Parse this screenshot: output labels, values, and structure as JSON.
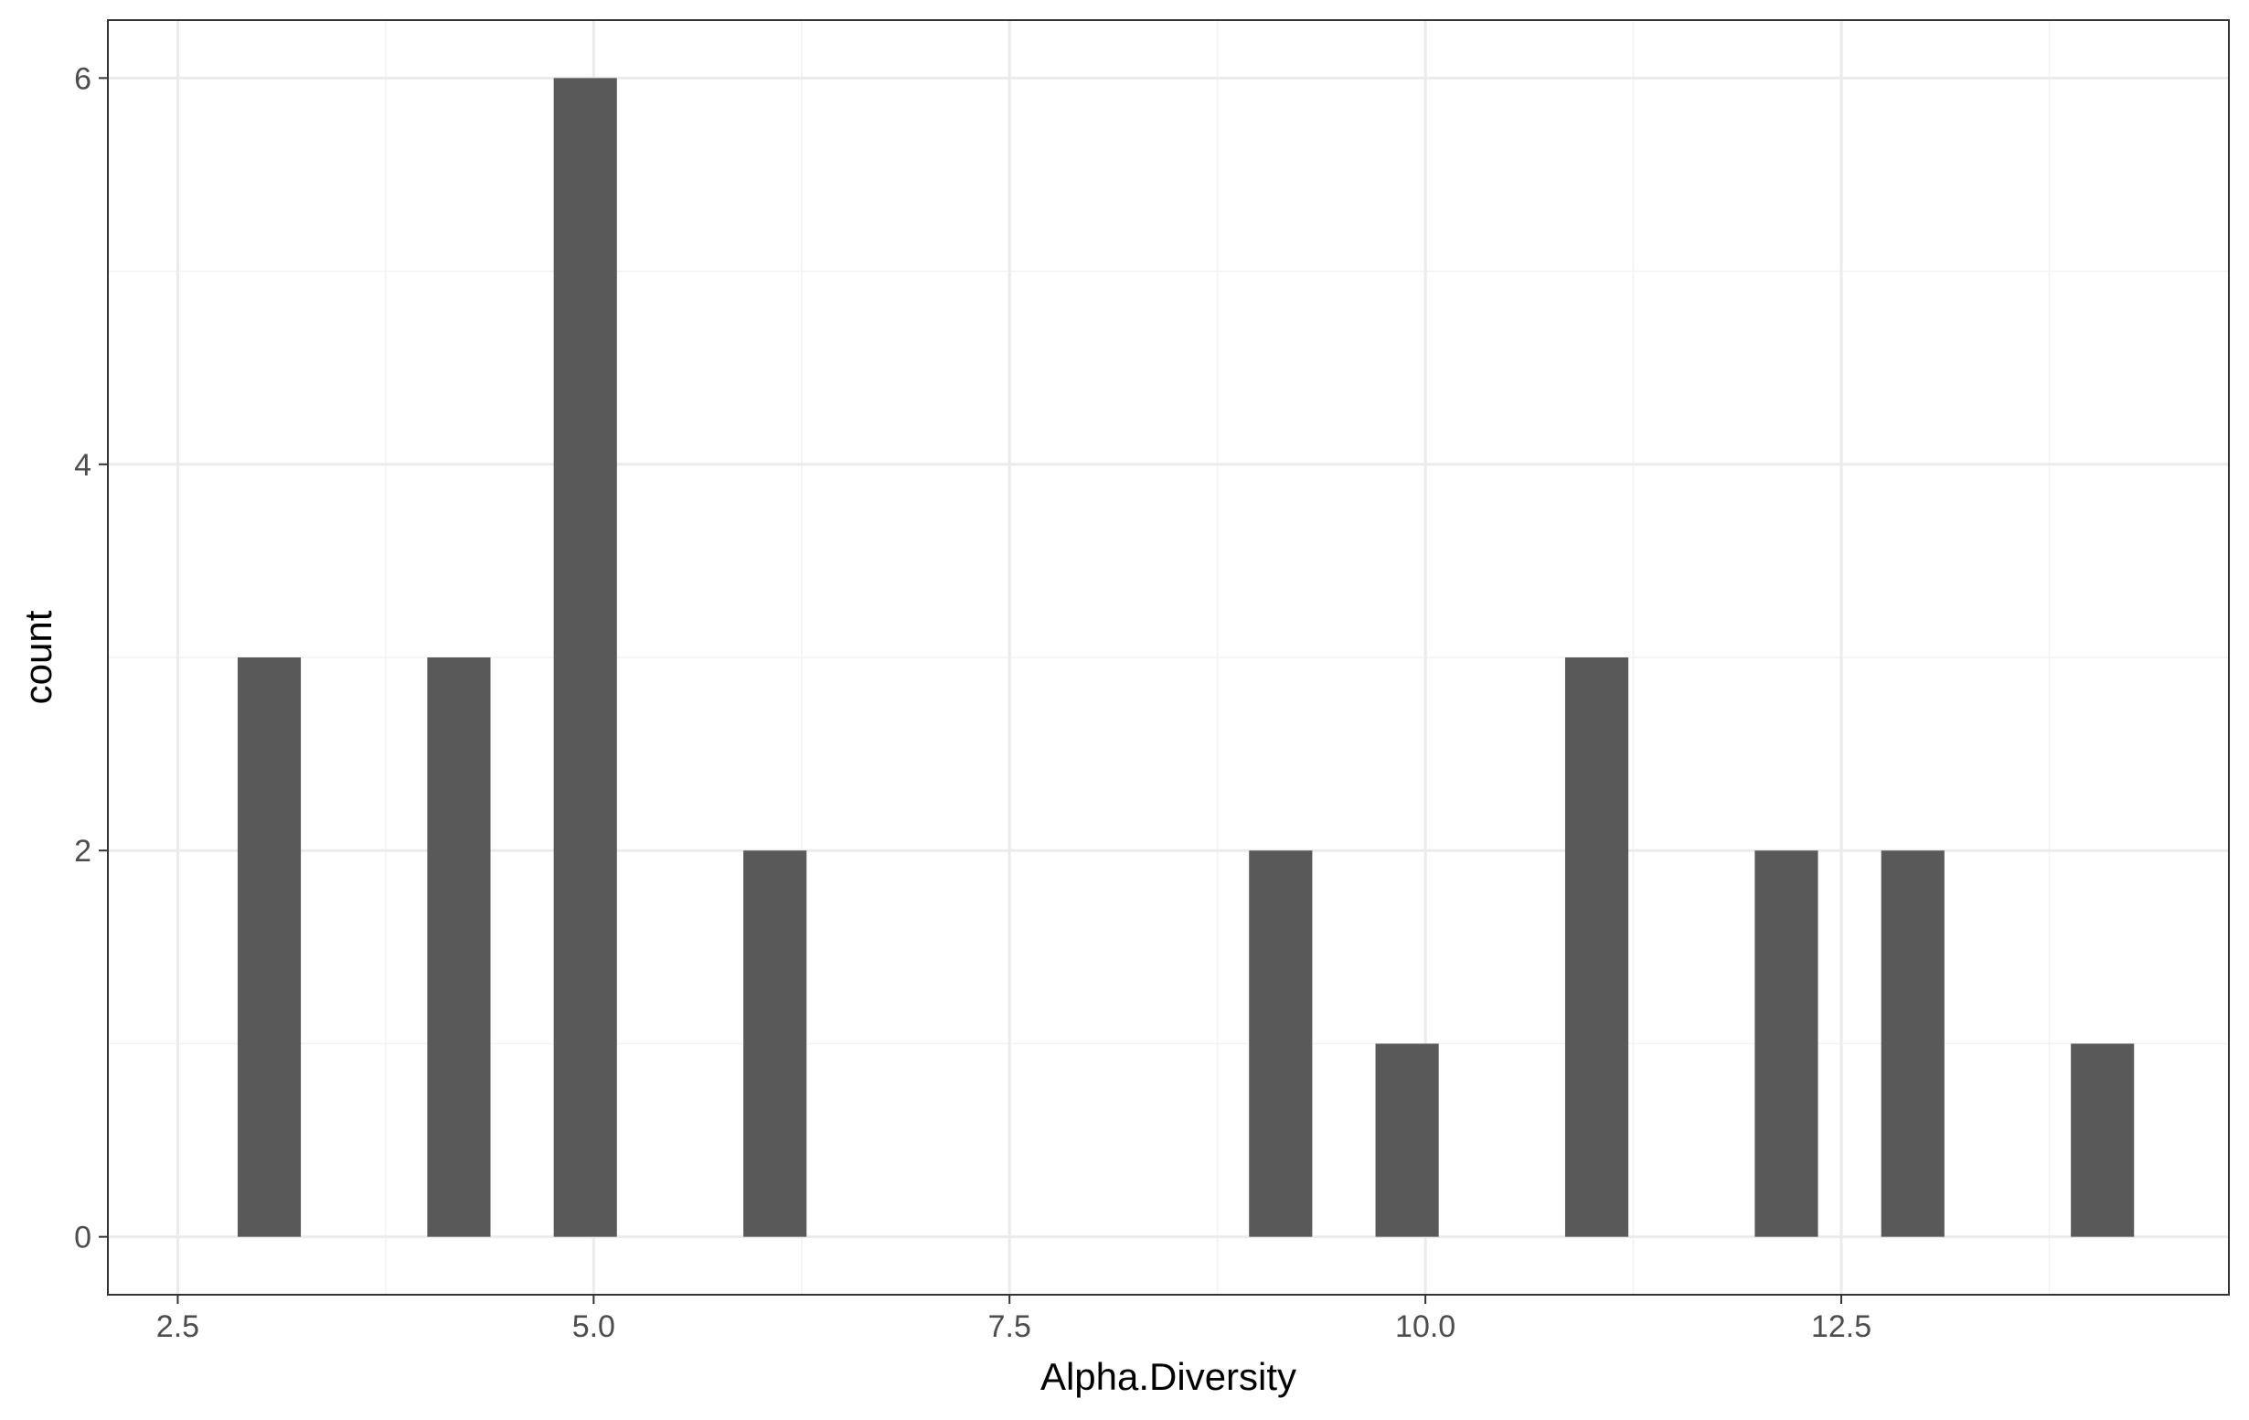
{
  "chart_data": {
    "type": "bar",
    "title": "",
    "xlabel": "Alpha.Diversity",
    "ylabel": "count",
    "grid": true,
    "legend": "none",
    "xlim": [
      2.08,
      14.83
    ],
    "ylim": [
      -0.3,
      6.3
    ],
    "x_ticks": [
      2.5,
      5.0,
      7.5,
      10.0,
      12.5
    ],
    "x_tick_labels": [
      "2.5",
      "5.0",
      "7.5",
      "10.0",
      "12.5"
    ],
    "y_ticks": [
      0,
      2,
      4,
      6
    ],
    "y_tick_labels": [
      "0",
      "2",
      "4",
      "6"
    ],
    "x_minor_ticks": [
      3.75,
      6.25,
      8.75,
      11.25,
      13.75
    ],
    "y_minor_ticks": [
      1,
      3,
      5
    ],
    "bar_width": 0.38,
    "bar_color": "#595959",
    "panel_border_color": "#333333",
    "grid_major_color": "#ebebeb",
    "grid_minor_color": "#f2f2f2",
    "series": [
      {
        "x": [
          3.05,
          4.19,
          4.95,
          6.09,
          9.13,
          9.89,
          11.03,
          12.17,
          12.93,
          14.07
        ],
        "values": [
          3,
          3,
          6,
          2,
          2,
          1,
          3,
          2,
          2,
          1
        ]
      }
    ]
  }
}
